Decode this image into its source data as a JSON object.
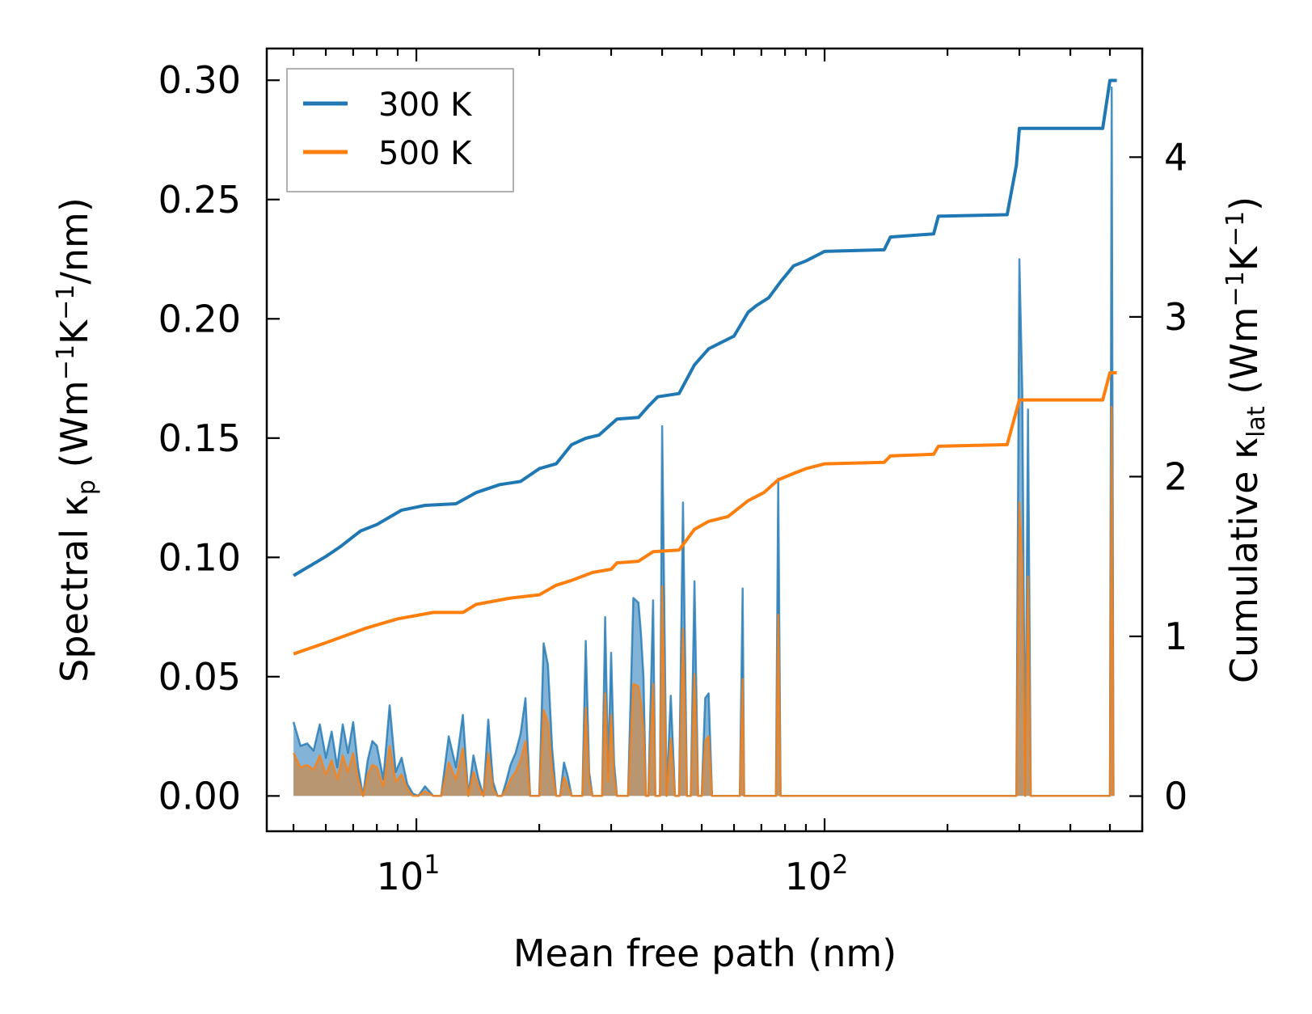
{
  "chart_data": {
    "type": "line",
    "xscale": "log",
    "xlabel": "Mean free path (nm)",
    "xlim": [
      4.3,
      600
    ],
    "x_tick_labels": [
      {
        "value": 10,
        "base": "10",
        "exp": "1"
      },
      {
        "value": 100,
        "base": "10",
        "exp": "2"
      }
    ],
    "left_axis": {
      "label_parts": [
        "Spectral κ",
        "p",
        " (Wm",
        "−1",
        "K",
        "−1",
        "/nm)"
      ],
      "ylim": [
        -0.0148,
        0.3133
      ],
      "ticks": [
        "0.00",
        "0.05",
        "0.10",
        "0.15",
        "0.20",
        "0.25",
        "0.30"
      ]
    },
    "right_axis": {
      "label_parts": [
        "Cumulative κ",
        "lat",
        " (Wm",
        "−1",
        "K",
        "−1",
        ")"
      ],
      "ylim": [
        -0.22,
        4.68
      ],
      "ticks": [
        "0",
        "1",
        "2",
        "3",
        "4"
      ]
    },
    "legend": {
      "position": "top-left",
      "entries": [
        "300 K",
        "500 K"
      ]
    },
    "colors": {
      "300 K": "#1f77b4",
      "500 K": "#ff7f0e",
      "fill_300": "#5a9bc9",
      "fill_500": "#c39160"
    },
    "spectral_x": [
      5,
      5.2,
      5.4,
      5.6,
      5.8,
      6,
      6.2,
      6.4,
      6.6,
      6.8,
      7,
      7.2,
      7.4,
      7.6,
      7.8,
      8,
      8.3,
      8.6,
      8.9,
      9.2,
      9.5,
      9.8,
      10.1,
      10.5,
      11,
      11.5,
      12,
      12.5,
      13,
      13.4,
      13.8,
      14.2,
      14.6,
      15,
      15.4,
      15.8,
      16.2,
      16.6,
      17,
      17.5,
      18,
      18.5,
      19,
      19.5,
      20,
      20.5,
      21,
      21.5,
      22,
      22.5,
      23,
      23.5,
      24,
      24.5,
      25,
      25.5,
      26,
      26.5,
      27,
      27.5,
      28,
      28.5,
      29,
      29.5,
      30,
      30.5,
      31,
      31.5,
      32,
      33,
      34,
      35,
      35.5,
      36,
      36.5,
      37,
      38,
      38.5,
      39,
      39.5,
      40,
      41,
      42,
      43,
      44,
      45,
      46,
      46.5,
      47,
      48,
      49,
      50,
      51,
      52,
      53,
      54,
      55,
      56,
      56.5,
      57,
      57.5,
      58,
      59,
      60,
      60.5,
      61,
      62,
      63,
      63.5,
      64,
      65,
      66,
      67,
      68,
      69,
      70,
      70.5,
      71,
      71.5,
      72,
      73,
      74,
      75,
      76,
      77,
      78,
      79,
      80,
      82,
      84,
      85,
      86,
      87,
      88,
      90,
      92,
      95,
      98,
      100,
      102,
      105,
      110,
      120,
      130,
      138,
      140,
      141,
      145,
      150,
      160,
      170,
      180,
      185,
      187,
      190,
      195,
      200,
      220,
      250,
      270,
      280,
      285,
      290,
      295,
      300,
      305,
      310,
      315,
      320,
      330,
      350,
      400,
      450,
      480,
      490,
      500,
      505,
      510,
      520
    ],
    "series": [
      {
        "name": "300 K",
        "spectral": [
          0.031,
          0.021,
          0.022,
          0.019,
          0.03,
          0.016,
          0.027,
          0.012,
          0.03,
          0.018,
          0.031,
          0.012,
          0.0,
          0.015,
          0.023,
          0.021,
          0.007,
          0.038,
          0.01,
          0.016,
          0.005,
          0.001,
          0.0,
          0.004,
          0.0,
          0.0,
          0.025,
          0.012,
          0.034,
          0.0,
          0.017,
          0.007,
          0.0,
          0.032,
          0.006,
          0.0,
          0.0,
          0.006,
          0.013,
          0.018,
          0.026,
          0.041,
          0.0,
          0.0,
          0.0,
          0.064,
          0.055,
          0.02,
          0.0,
          0.0,
          0.014,
          0.008,
          0.0,
          0.0,
          0.0,
          0.0,
          0.065,
          0.01,
          0.0,
          0.0,
          0.0,
          0.0,
          0.075,
          0.01,
          0.06,
          0.014,
          0.0,
          0.0,
          0.0,
          0.0,
          0.083,
          0.081,
          0.068,
          0.05,
          0.0,
          0.0,
          0.082,
          0.0,
          0.0,
          0.0,
          0.155,
          0.0,
          0.042,
          0.0,
          0.0,
          0.123,
          0.0,
          0.0,
          0.0,
          0.09,
          0.0,
          0.0,
          0.041,
          0.043,
          0.0,
          0.0,
          0.0,
          0.0,
          0.0,
          0.0,
          0.0,
          0.0,
          0.0,
          0.0,
          0.0,
          0.0,
          0.0,
          0.087,
          0.0,
          0.0,
          0.0,
          0.0,
          0.0,
          0.0,
          0.0,
          0.0,
          0.0,
          0.0,
          0.0,
          0.0,
          0.0,
          0.0,
          0.0,
          0.0,
          0.133,
          0.0,
          0.0,
          0.0,
          0.0,
          0.0,
          0.0,
          0.0,
          0.0,
          0.0,
          0.0,
          0.0,
          0.0,
          0.0,
          0.0,
          0.0,
          0.0,
          0.0,
          0.0,
          0.0,
          0.0,
          0.0,
          0.0,
          0.0,
          0.0,
          0.0,
          0.0,
          0.0,
          0.0,
          0.0,
          0.0,
          0.0,
          0.0,
          0.0,
          0.0,
          0.0,
          0.0,
          0.0,
          0.0,
          0.0,
          0.225,
          0.17,
          0.0,
          0.162,
          0.0,
          0.0,
          0.0,
          0.0,
          0.0,
          0.0,
          0.0,
          0.0,
          0.297,
          0.0
        ],
        "cumulative": [
          [
            5,
            1.38
          ],
          [
            6,
            1.5
          ],
          [
            6.5,
            1.56
          ],
          [
            7.3,
            1.66
          ],
          [
            8,
            1.7
          ],
          [
            9.2,
            1.79
          ],
          [
            10.5,
            1.82
          ],
          [
            12.5,
            1.83
          ],
          [
            14,
            1.9
          ],
          [
            16,
            1.95
          ],
          [
            18,
            1.97
          ],
          [
            20,
            2.05
          ],
          [
            22,
            2.08
          ],
          [
            24,
            2.2
          ],
          [
            26,
            2.24
          ],
          [
            28,
            2.26
          ],
          [
            31,
            2.36
          ],
          [
            35,
            2.37
          ],
          [
            37,
            2.44
          ],
          [
            39,
            2.5
          ],
          [
            44,
            2.52
          ],
          [
            48,
            2.7
          ],
          [
            52,
            2.8
          ],
          [
            60,
            2.88
          ],
          [
            65,
            3.03
          ],
          [
            68,
            3.07
          ],
          [
            73,
            3.12
          ],
          [
            78,
            3.22
          ],
          [
            84,
            3.32
          ],
          [
            90,
            3.35
          ],
          [
            100,
            3.41
          ],
          [
            140,
            3.42
          ],
          [
            145,
            3.5
          ],
          [
            185,
            3.52
          ],
          [
            190,
            3.63
          ],
          [
            280,
            3.64
          ],
          [
            295,
            3.95
          ],
          [
            300,
            4.18
          ],
          [
            480,
            4.18
          ],
          [
            500,
            4.48
          ],
          [
            520,
            4.48
          ]
        ]
      },
      {
        "name": "500 K",
        "spectral": [
          0.018,
          0.012,
          0.013,
          0.011,
          0.017,
          0.009,
          0.015,
          0.007,
          0.017,
          0.01,
          0.018,
          0.007,
          0.0,
          0.009,
          0.013,
          0.012,
          0.004,
          0.021,
          0.006,
          0.009,
          0.003,
          0.0,
          0.0,
          0.002,
          0.0,
          0.0,
          0.014,
          0.007,
          0.02,
          0.0,
          0.01,
          0.004,
          0.0,
          0.018,
          0.003,
          0.0,
          0.0,
          0.003,
          0.007,
          0.01,
          0.015,
          0.023,
          0.0,
          0.0,
          0.0,
          0.036,
          0.031,
          0.011,
          0.0,
          0.0,
          0.008,
          0.004,
          0.0,
          0.0,
          0.0,
          0.0,
          0.037,
          0.006,
          0.0,
          0.0,
          0.0,
          0.0,
          0.043,
          0.006,
          0.034,
          0.008,
          0.0,
          0.0,
          0.0,
          0.0,
          0.047,
          0.046,
          0.039,
          0.028,
          0.0,
          0.0,
          0.047,
          0.0,
          0.0,
          0.0,
          0.088,
          0.0,
          0.024,
          0.0,
          0.0,
          0.07,
          0.0,
          0.0,
          0.0,
          0.051,
          0.0,
          0.0,
          0.023,
          0.025,
          0.0,
          0.0,
          0.0,
          0.0,
          0.0,
          0.0,
          0.0,
          0.0,
          0.0,
          0.0,
          0.0,
          0.0,
          0.0,
          0.049,
          0.0,
          0.0,
          0.0,
          0.0,
          0.0,
          0.0,
          0.0,
          0.0,
          0.0,
          0.0,
          0.0,
          0.0,
          0.0,
          0.0,
          0.0,
          0.0,
          0.076,
          0.0,
          0.0,
          0.0,
          0.0,
          0.0,
          0.0,
          0.0,
          0.0,
          0.0,
          0.0,
          0.0,
          0.0,
          0.0,
          0.0,
          0.0,
          0.0,
          0.0,
          0.0,
          0.0,
          0.0,
          0.0,
          0.0,
          0.0,
          0.0,
          0.0,
          0.0,
          0.0,
          0.0,
          0.0,
          0.0,
          0.0,
          0.0,
          0.0,
          0.0,
          0.0,
          0.0,
          0.0,
          0.0,
          0.0,
          0.123,
          0.097,
          0.0,
          0.092,
          0.0,
          0.0,
          0.0,
          0.0,
          0.0,
          0.0,
          0.0,
          0.0,
          0.163,
          0.0
        ],
        "cumulative": [
          [
            5,
            0.89
          ],
          [
            6,
            0.96
          ],
          [
            7.5,
            1.05
          ],
          [
            9,
            1.11
          ],
          [
            11,
            1.15
          ],
          [
            13,
            1.15
          ],
          [
            14,
            1.2
          ],
          [
            17,
            1.24
          ],
          [
            20,
            1.26
          ],
          [
            22,
            1.32
          ],
          [
            24,
            1.35
          ],
          [
            27,
            1.4
          ],
          [
            30,
            1.42
          ],
          [
            31,
            1.46
          ],
          [
            35,
            1.47
          ],
          [
            38,
            1.53
          ],
          [
            44,
            1.54
          ],
          [
            48,
            1.67
          ],
          [
            52,
            1.72
          ],
          [
            58,
            1.75
          ],
          [
            65,
            1.85
          ],
          [
            71,
            1.9
          ],
          [
            77,
            1.98
          ],
          [
            84,
            2.02
          ],
          [
            90,
            2.05
          ],
          [
            100,
            2.08
          ],
          [
            140,
            2.09
          ],
          [
            145,
            2.13
          ],
          [
            185,
            2.14
          ],
          [
            190,
            2.19
          ],
          [
            280,
            2.2
          ],
          [
            300,
            2.48
          ],
          [
            480,
            2.48
          ],
          [
            500,
            2.65
          ],
          [
            520,
            2.65
          ]
        ]
      }
    ]
  }
}
